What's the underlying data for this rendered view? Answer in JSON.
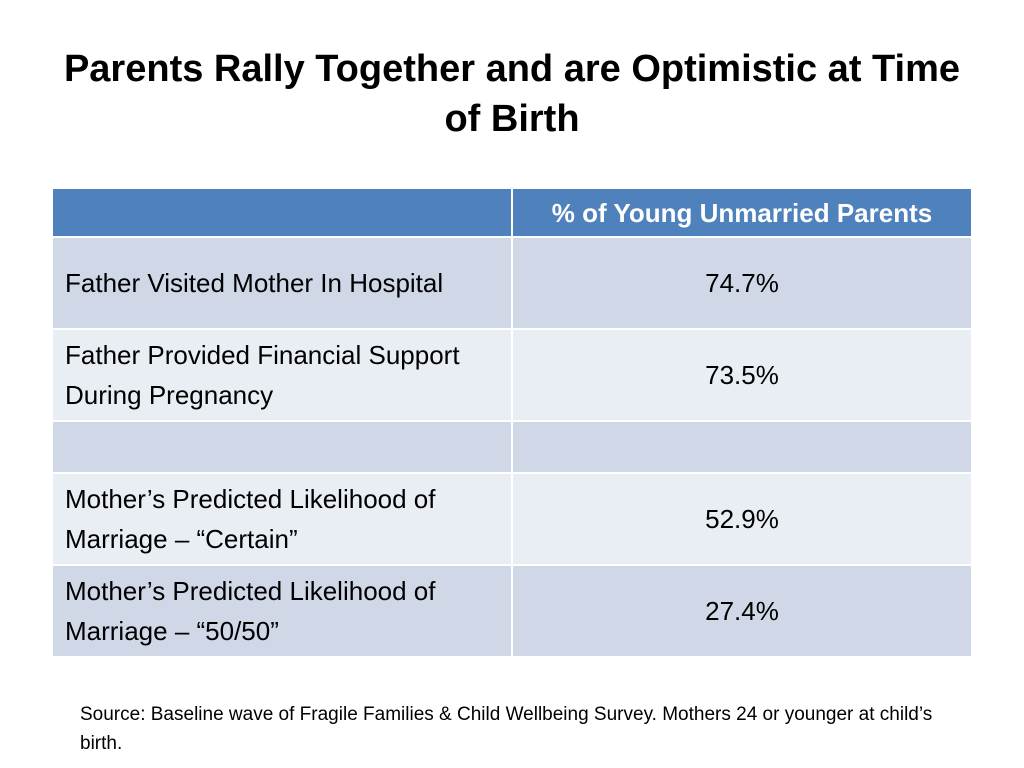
{
  "slide": {
    "title": "Parents Rally Together and are Optimistic at Time of Birth",
    "source": "Source: Baseline wave of Fragile Families & Child Wellbeing Survey. Mothers 24 or younger at child’s birth."
  },
  "table": {
    "header_label": "",
    "header_value": "% of Young Unmarried Parents",
    "rows": [
      {
        "label": "Father Visited Mother In Hospital",
        "value": "74.7%"
      },
      {
        "label": "Father Provided Financial Support During Pregnancy",
        "value": "73.5%"
      },
      {
        "label": "",
        "value": ""
      },
      {
        "label": "Mother’s Predicted Likelihood of Marriage – “Certain”",
        "value": "52.9%"
      },
      {
        "label": "Mother’s Predicted Likelihood of Marriage – “50/50”",
        "value": "27.4%"
      }
    ]
  },
  "colors": {
    "header": "#4f81bd",
    "row_dark": "#d0d8e8",
    "row_light": "#e9edf4"
  }
}
